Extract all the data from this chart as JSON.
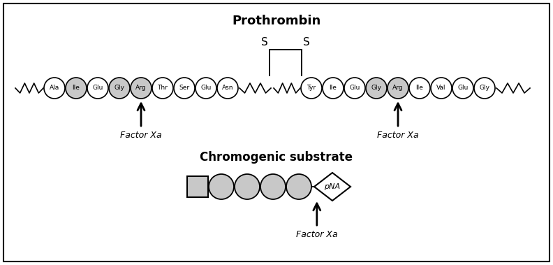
{
  "title_prothrombin": "Prothrombin",
  "title_substrate": "Chromogenic substrate",
  "prothrombin_row1": [
    "Ala",
    "Ile",
    "Glu",
    "Gly",
    "Arg",
    "Thr",
    "Ser",
    "Glu",
    "Asn"
  ],
  "prothrombin_row2": [
    "Tyr",
    "Ile",
    "Glu",
    "Gly",
    "Arg",
    "Ile",
    "Val",
    "Glu",
    "Gly"
  ],
  "shaded_indices_row1": [
    1,
    3,
    4
  ],
  "shaded_indices_row2": [
    3,
    4
  ],
  "arrow1_label": "Factor Xa",
  "arrow2_label": "Factor Xa",
  "arrow3_label": "Factor Xa",
  "circle_color_light": "#c8c8c8",
  "circle_color_white": "#ffffff",
  "circle_edge": "#000000",
  "bg_color": "#ffffff",
  "border_color": "#000000"
}
